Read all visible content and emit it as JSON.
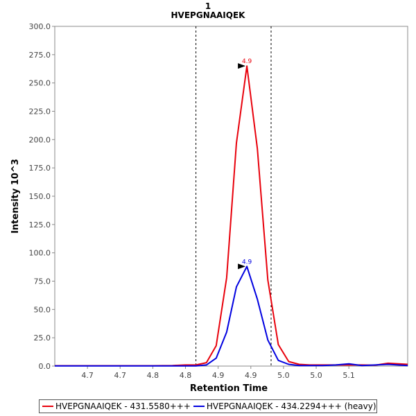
{
  "chart_data": {
    "type": "line",
    "title": "1",
    "subtitle": "HVEPGNAAIQEK",
    "xlabel": "Retention Time",
    "ylabel": "Intensity 10^3",
    "xlim": [
      4.65,
      5.19
    ],
    "ylim": [
      0,
      300
    ],
    "x_ticks": [
      {
        "value": 4.7,
        "label": "4.7"
      },
      {
        "value": 4.75,
        "label": "4.7"
      },
      {
        "value": 4.8,
        "label": "4.8"
      },
      {
        "value": 4.85,
        "label": "4.8"
      },
      {
        "value": 4.9,
        "label": "4.9"
      },
      {
        "value": 4.95,
        "label": "4.9"
      },
      {
        "value": 5.0,
        "label": "5.0"
      },
      {
        "value": 5.05,
        "label": "5.0"
      },
      {
        "value": 5.1,
        "label": "5.1"
      }
    ],
    "y_ticks": [
      {
        "value": 0,
        "label": "0.0"
      },
      {
        "value": 25,
        "label": "25.0"
      },
      {
        "value": 50,
        "label": "50.0"
      },
      {
        "value": 75,
        "label": "75.0"
      },
      {
        "value": 100,
        "label": "100.0"
      },
      {
        "value": 125,
        "label": "125.0"
      },
      {
        "value": 150,
        "label": "150.0"
      },
      {
        "value": 175,
        "label": "175.0"
      },
      {
        "value": 200,
        "label": "200.0"
      },
      {
        "value": 225,
        "label": "225.0"
      },
      {
        "value": 250,
        "label": "250.0"
      },
      {
        "value": 275,
        "label": "275.0"
      },
      {
        "value": 300,
        "label": "300.0"
      }
    ],
    "integration_boundaries": [
      4.866,
      4.981
    ],
    "grid": false,
    "legend_position": "bottom",
    "series": [
      {
        "name": "HVEPGNAAIQEK - 431.5580+++",
        "color": "#e8000b",
        "x": [
          4.65,
          4.69,
          4.72,
          4.75,
          4.78,
          4.8,
          4.83,
          4.85,
          4.866,
          4.882,
          4.897,
          4.913,
          4.928,
          4.944,
          4.96,
          4.976,
          4.992,
          5.008,
          5.024,
          5.04,
          5.06,
          5.08,
          5.1,
          5.12,
          5.14,
          5.16,
          5.19
        ],
        "y": [
          0.3,
          0.3,
          0.3,
          0.3,
          0.3,
          0.3,
          0.5,
          1.0,
          1.0,
          3.0,
          18.0,
          78.0,
          197.0,
          265.0,
          192.0,
          76.0,
          19.0,
          4.0,
          1.5,
          1.0,
          1.0,
          1.0,
          1.0,
          1.0,
          0.8,
          2.5,
          1.5
        ]
      },
      {
        "name": "HVEPGNAAIQEK - 434.2294+++ (heavy)",
        "color": "#0000e0",
        "x": [
          4.65,
          4.7,
          4.75,
          4.8,
          4.85,
          4.866,
          4.882,
          4.897,
          4.913,
          4.928,
          4.944,
          4.96,
          4.976,
          4.992,
          5.008,
          5.024,
          5.04,
          5.06,
          5.08,
          5.1,
          5.12,
          5.14,
          5.16,
          5.19
        ],
        "y": [
          0.1,
          0.1,
          0.1,
          0.1,
          0.1,
          0.1,
          1.0,
          7.0,
          30.0,
          70.0,
          88.0,
          59.0,
          23.0,
          5.0,
          1.5,
          0.5,
          0.5,
          0.5,
          1.0,
          2.0,
          0.5,
          1.0,
          1.5,
          0.5
        ]
      }
    ],
    "annotations": [
      {
        "text": "4.9",
        "x": 4.944,
        "y": 265.0,
        "series": 0
      },
      {
        "text": "4.9",
        "x": 4.944,
        "y": 88.0,
        "series": 1
      }
    ]
  }
}
